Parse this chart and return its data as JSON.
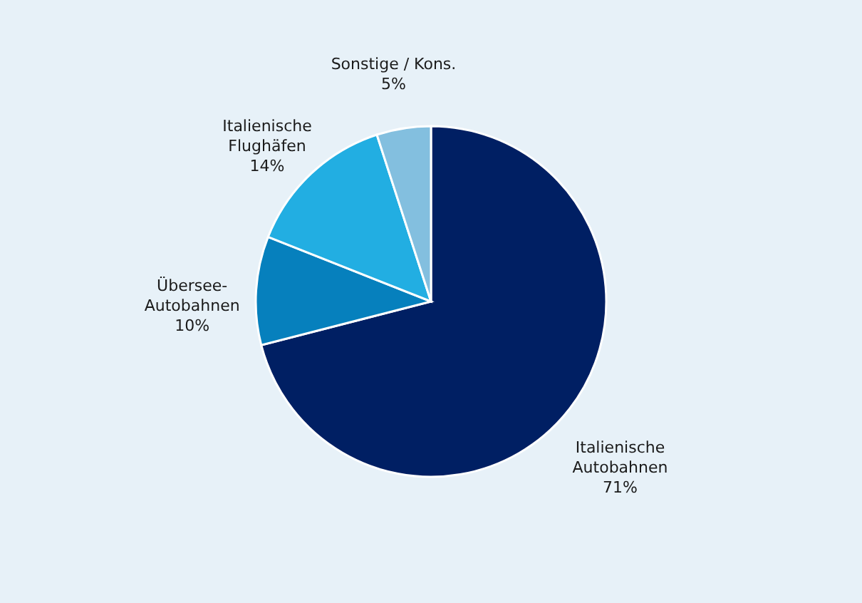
{
  "chart_data": {
    "type": "pie",
    "categories": [
      "Italienische\nAutobahnen",
      "Übersee-\nAutobahnen",
      "Italienische\nFlughäfen",
      "Sonstige / Kons."
    ],
    "values": [
      71,
      10,
      14,
      5
    ],
    "value_labels": [
      "71%",
      "10%",
      "14%",
      "5%"
    ],
    "colors": [
      "#001f63",
      "#0680bd",
      "#22aee2",
      "#83bfdf"
    ],
    "legend": false
  }
}
